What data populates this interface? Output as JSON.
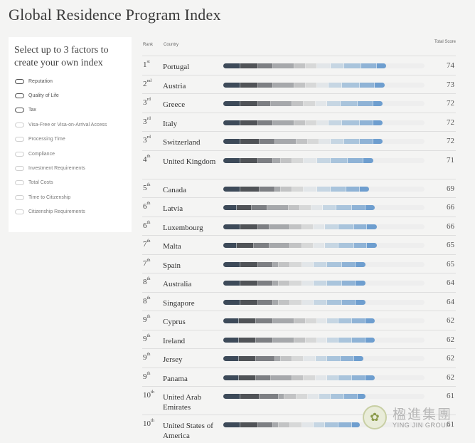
{
  "page_title": "Global Residence Program Index",
  "filter_panel": {
    "heading": "Select up to 3 factors to create your own index",
    "factors": [
      {
        "label": "Reputation",
        "enabled": true
      },
      {
        "label": "Quality of Life",
        "enabled": true
      },
      {
        "label": "Tax",
        "enabled": true
      },
      {
        "label": "Visa-Free or Visa-on-Arrival Access",
        "enabled": false
      },
      {
        "label": "Processing Time",
        "enabled": false
      },
      {
        "label": "Compliance",
        "enabled": false
      },
      {
        "label": "Investment Requirements",
        "enabled": false
      },
      {
        "label": "Total Costs",
        "enabled": false
      },
      {
        "label": "Time to Citizenship",
        "enabled": false
      },
      {
        "label": "Citizenship Requirements",
        "enabled": false
      }
    ]
  },
  "table": {
    "columns": {
      "rank": "Rank",
      "country": "Country",
      "score": "Total Score"
    },
    "segment_colors": [
      "#3d4a59",
      "#505357",
      "#7d7f83",
      "#a6a8ab",
      "#c2c3c4",
      "#d7d8d8",
      "#e2e6e9",
      "#c6d6e3",
      "#a9c4dc",
      "#8fb3d6",
      "#6e9ecf"
    ],
    "rows": [
      {
        "rank": "1",
        "suffix": "st",
        "country": "Portugal",
        "score": "74",
        "segments": [
          9,
          9,
          8,
          11,
          6,
          6,
          7,
          7,
          9,
          8,
          5
        ]
      },
      {
        "rank": "2",
        "suffix": "nd",
        "country": "Austria",
        "score": "73",
        "segments": [
          9,
          9,
          8,
          11,
          6,
          6,
          6,
          7,
          9,
          8,
          5
        ]
      },
      {
        "rank": "3",
        "suffix": "rd",
        "country": "Greece",
        "score": "72",
        "segments": [
          9,
          9,
          7,
          11,
          6,
          6,
          6,
          7,
          9,
          8,
          5
        ]
      },
      {
        "rank": "3",
        "suffix": "rd",
        "country": "Italy",
        "score": "72",
        "segments": [
          9,
          9,
          8,
          11,
          6,
          6,
          6,
          7,
          9,
          7,
          5
        ]
      },
      {
        "rank": "3",
        "suffix": "rd",
        "country": "Switzerland",
        "score": "72",
        "segments": [
          9,
          10,
          8,
          11,
          6,
          6,
          6,
          7,
          8,
          7,
          5
        ]
      },
      {
        "rank": "4",
        "suffix": "th",
        "country": "United Kingdom",
        "score": "71",
        "segments": [
          9,
          9,
          8,
          4,
          6,
          6,
          7,
          7,
          9,
          8,
          5
        ],
        "tall": true
      },
      {
        "rank": "5",
        "suffix": "th",
        "country": "Canada",
        "score": "69",
        "segments": [
          9,
          10,
          8,
          3,
          6,
          6,
          7,
          7,
          8,
          7,
          5
        ]
      },
      {
        "rank": "6",
        "suffix": "th",
        "country": "Latvia",
        "score": "66",
        "segments": [
          7,
          8,
          8,
          11,
          6,
          6,
          6,
          7,
          8,
          7,
          5
        ]
      },
      {
        "rank": "6",
        "suffix": "th",
        "country": "Luxembourg",
        "score": "66",
        "segments": [
          9,
          9,
          6,
          11,
          6,
          6,
          6,
          7,
          8,
          7,
          5
        ]
      },
      {
        "rank": "7",
        "suffix": "th",
        "country": "Malta",
        "score": "65",
        "segments": [
          7,
          9,
          8,
          11,
          6,
          6,
          6,
          7,
          8,
          7,
          5
        ]
      },
      {
        "rank": "7",
        "suffix": "th",
        "country": "Spain",
        "score": "65",
        "segments": [
          9,
          9,
          8,
          3,
          6,
          6,
          6,
          7,
          8,
          7,
          5
        ]
      },
      {
        "rank": "8",
        "suffix": "th",
        "country": "Australia",
        "score": "64",
        "segments": [
          9,
          9,
          8,
          3,
          6,
          6,
          6,
          7,
          8,
          7,
          5
        ]
      },
      {
        "rank": "8",
        "suffix": "th",
        "country": "Singapore",
        "score": "64",
        "segments": [
          9,
          9,
          8,
          3,
          6,
          6,
          6,
          7,
          8,
          7,
          5
        ]
      },
      {
        "rank": "9",
        "suffix": "th",
        "country": "Cyprus",
        "score": "62",
        "segments": [
          8,
          9,
          9,
          11,
          6,
          6,
          5,
          6,
          7,
          7,
          5
        ]
      },
      {
        "rank": "9",
        "suffix": "th",
        "country": "Ireland",
        "score": "62",
        "segments": [
          8,
          9,
          9,
          11,
          6,
          6,
          5,
          6,
          7,
          7,
          5
        ]
      },
      {
        "rank": "9",
        "suffix": "th",
        "country": "Jersey",
        "score": "62",
        "segments": [
          8,
          9,
          10,
          3,
          6,
          6,
          6,
          6,
          7,
          7,
          5
        ]
      },
      {
        "rank": "9",
        "suffix": "th",
        "country": "Panama",
        "score": "62",
        "segments": [
          8,
          9,
          8,
          11,
          6,
          6,
          6,
          6,
          7,
          7,
          5
        ]
      },
      {
        "rank": "10",
        "suffix": "th",
        "country": "United Arab Emirates",
        "score": "61",
        "segments": [
          9,
          10,
          10,
          3,
          6,
          6,
          6,
          6,
          7,
          7,
          4
        ],
        "tall": true
      },
      {
        "rank": "10",
        "suffix": "th",
        "country": "United States of America",
        "score": "61",
        "segments": [
          9,
          9,
          8,
          3,
          6,
          6,
          6,
          6,
          7,
          7,
          4
        ],
        "tall": true
      }
    ]
  },
  "watermark": {
    "chinese": "楹進集團",
    "english": "YING JIN GROUP",
    "icon": "emblem-icon"
  }
}
